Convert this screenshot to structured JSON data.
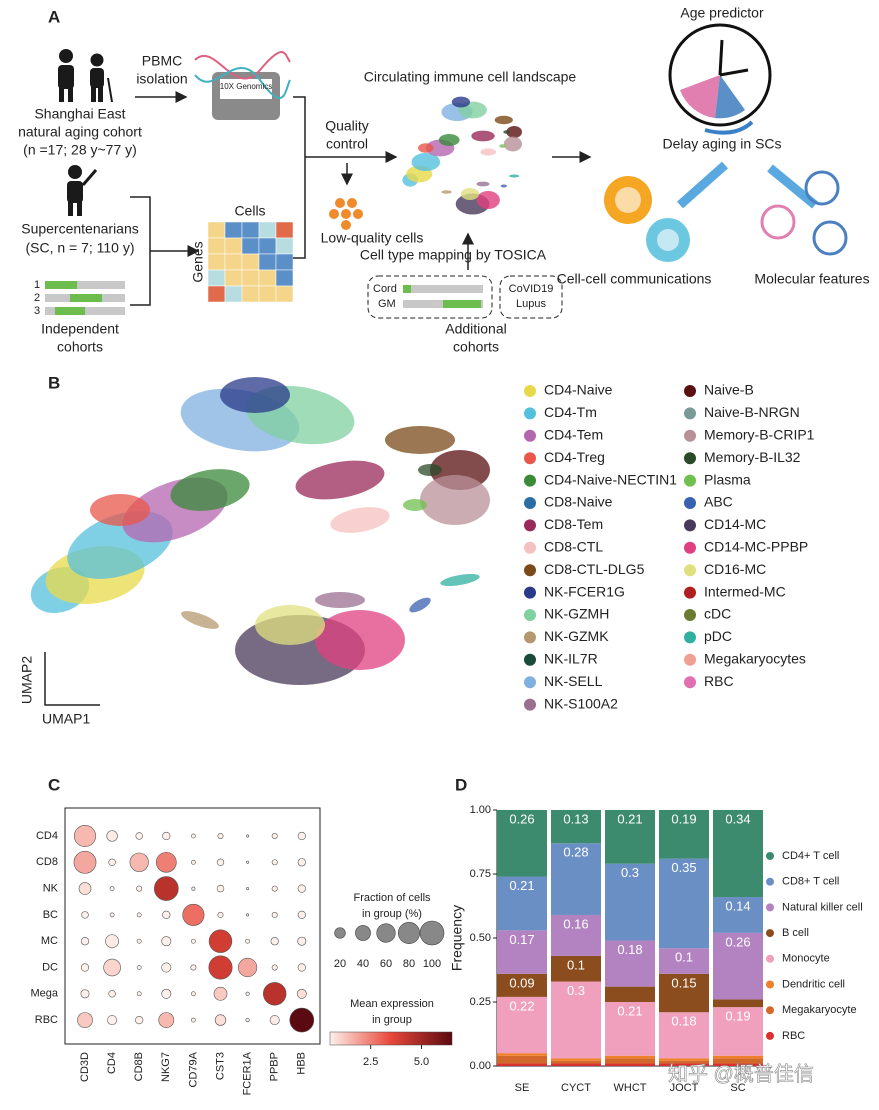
{
  "panel_a": {
    "label": "A",
    "isolation": [
      "PBMC",
      "isolation"
    ],
    "cohort": [
      "Shanghai East",
      "natural aging cohort",
      "(n =17; 28 y~77 y)"
    ],
    "kit": "10X Genomics",
    "sc": [
      "Supercentenarians",
      "(SC, n = 7; 110 y)"
    ],
    "cohort_numbers": [
      "1",
      "2",
      "3"
    ],
    "independent": [
      "Independent",
      "cohorts"
    ],
    "cells": "Cells",
    "genes": "Genes",
    "qc": [
      "Quality",
      "control"
    ],
    "low_quality": "Low-quality cells",
    "landscape": "Circulating immune cell landscape",
    "mapping": "Cell type mapping by TOSICA",
    "references": [
      "Cord",
      "GM"
    ],
    "diseases": [
      "CoVID19",
      "Lupus"
    ],
    "additional": [
      "Additional",
      "cohorts"
    ],
    "age": "Age predictor",
    "delay": "Delay aging in SCs",
    "ccc": "Cell-cell communications",
    "molecular": "Molecular features"
  },
  "panel_b": {
    "label": "B",
    "x_label": "UMAP1",
    "y_label": "UMAP2",
    "cell_types": [
      {
        "name": "CD4-Naive",
        "color": "#e8d94a"
      },
      {
        "name": "CD4-Tm",
        "color": "#55c0dc"
      },
      {
        "name": "CD4-Tem",
        "color": "#b565b0"
      },
      {
        "name": "CD4-Treg",
        "color": "#e8574a"
      },
      {
        "name": "CD4-Naive-NECTIN1",
        "color": "#3a8a3a"
      },
      {
        "name": "CD8-Naive",
        "color": "#2b6ea3"
      },
      {
        "name": "CD8-Tem",
        "color": "#9a2a5a"
      },
      {
        "name": "CD8-CTL",
        "color": "#f5c0c0"
      },
      {
        "name": "CD8-CTL-DLG5",
        "color": "#7a4a1a"
      },
      {
        "name": "NK-FCER1G",
        "color": "#2a3a8a"
      },
      {
        "name": "NK-GZMH",
        "color": "#80d0a0"
      },
      {
        "name": "NK-GZMK",
        "color": "#b59870"
      },
      {
        "name": "NK-IL7R",
        "color": "#1a4a3a"
      },
      {
        "name": "NK-SELL",
        "color": "#80b0e0"
      },
      {
        "name": "NK-S100A2",
        "color": "#9a7090"
      },
      {
        "name": "Naive-B",
        "color": "#5a1010"
      },
      {
        "name": "Naive-B-NRGN",
        "color": "#7a9a98"
      },
      {
        "name": "Memory-B-CRIP1",
        "color": "#b89098"
      },
      {
        "name": "Memory-B-IL32",
        "color": "#2a4a2a"
      },
      {
        "name": "Plasma",
        "color": "#70c050"
      },
      {
        "name": "ABC",
        "color": "#3a60b0"
      },
      {
        "name": "CD14-MC",
        "color": "#4a3a5a"
      },
      {
        "name": "CD14-MC-PPBP",
        "color": "#e04080"
      },
      {
        "name": "CD16-MC",
        "color": "#e0e080"
      },
      {
        "name": "Intermed-MC",
        "color": "#b02020"
      },
      {
        "name": "cDC",
        "color": "#6a7a30"
      },
      {
        "name": "pDC",
        "color": "#30b0a0"
      },
      {
        "name": "Megakaryocytes",
        "color": "#f0a090"
      },
      {
        "name": "RBC",
        "color": "#e070b0"
      }
    ]
  },
  "chart_data": [
    {
      "type": "dot",
      "panel_label": "C",
      "rows": [
        "CD4",
        "CD8",
        "NK",
        "BC",
        "MC",
        "DC",
        "Mega",
        "RBC"
      ],
      "columns": [
        "CD3D",
        "CD4",
        "CD8B",
        "NKG7",
        "CD79A",
        "CST3",
        "FCER1A",
        "PPBP",
        "HBB"
      ],
      "fraction": [
        [
          80,
          20,
          8,
          10,
          3,
          5,
          1,
          5,
          10
        ],
        [
          85,
          8,
          60,
          70,
          3,
          8,
          1,
          5,
          10
        ],
        [
          25,
          3,
          5,
          100,
          2,
          8,
          1,
          5,
          10
        ],
        [
          8,
          3,
          3,
          10,
          80,
          5,
          1,
          5,
          10
        ],
        [
          10,
          30,
          3,
          15,
          3,
          90,
          3,
          10,
          12
        ],
        [
          10,
          50,
          3,
          15,
          5,
          95,
          60,
          5,
          10
        ],
        [
          12,
          8,
          3,
          15,
          3,
          30,
          2,
          90,
          15
        ],
        [
          40,
          15,
          10,
          40,
          3,
          20,
          2,
          15,
          100
        ]
      ],
      "expression": [
        [
          1.5,
          0.6,
          0.2,
          0.4,
          0.1,
          0.2,
          0.1,
          0.3,
          0.5
        ],
        [
          1.8,
          0.2,
          1.5,
          2.5,
          0.1,
          0.3,
          0.1,
          0.3,
          0.5
        ],
        [
          0.8,
          0.1,
          0.2,
          4.5,
          0.1,
          0.3,
          0.1,
          0.3,
          0.5
        ],
        [
          0.2,
          0.1,
          0.1,
          0.4,
          2.8,
          0.3,
          0.1,
          0.3,
          0.5
        ],
        [
          0.3,
          0.6,
          0.1,
          0.5,
          0.1,
          4.0,
          0.2,
          0.5,
          0.5
        ],
        [
          0.3,
          1.0,
          0.1,
          0.5,
          0.2,
          4.0,
          1.8,
          0.2,
          0.5
        ],
        [
          0.4,
          0.2,
          0.1,
          0.5,
          0.1,
          1.2,
          0.1,
          4.5,
          0.8
        ],
        [
          1.2,
          0.5,
          0.5,
          1.5,
          0.1,
          0.8,
          0.1,
          0.6,
          6.5
        ]
      ],
      "size_legend": {
        "title": [
          "Fraction of cells",
          "in group (%)"
        ],
        "values": [
          20,
          40,
          60,
          80,
          100
        ]
      },
      "color_legend": {
        "title": [
          "Mean expression",
          "in group"
        ],
        "lim": [
          0.5,
          6.5
        ],
        "ticks": [
          2.5,
          {
            "value": 5,
            "label": "5.0"
          }
        ],
        "colors": [
          "#fdf0ea",
          "#e8473a",
          "#5a0a10"
        ]
      }
    },
    {
      "type": "bar",
      "stacked": true,
      "panel_label": "D",
      "y_label": "Frequency",
      "categories": [
        "SE",
        "CYCT",
        "WHCT",
        "JOCT",
        "SC"
      ],
      "ylim": [
        0,
        1
      ],
      "yticks": [
        {
          "value": 0,
          "label": "0.00"
        },
        {
          "value": 0.25,
          "label": "0.25"
        },
        {
          "value": 0.5,
          "label": "0.50"
        },
        {
          "value": 0.75,
          "label": "0.75"
        },
        {
          "value": 1,
          "label": "1.00"
        }
      ],
      "legend_position": "right",
      "series": [
        {
          "name": "CD4+ T cell",
          "color": "#3d8b6e",
          "values": [
            0.26,
            0.13,
            0.21,
            0.19,
            0.34
          ],
          "show_labels": true
        },
        {
          "name": "CD8+ T cell",
          "color": "#6a8fc4",
          "values": [
            0.21,
            0.28,
            0.3,
            0.35,
            0.14
          ],
          "show_labels": true
        },
        {
          "name": "Natural killer cell",
          "color": "#b283c0",
          "values": [
            0.17,
            0.16,
            0.18,
            0.1,
            0.26
          ],
          "show_labels": true
        },
        {
          "name": "B cell",
          "color": "#8b4d1e",
          "values": [
            0.09,
            0.1,
            0.06,
            0.15,
            0.03
          ],
          "value_labels": [
            "0.09",
            "0.1",
            null,
            "0.15",
            null
          ]
        },
        {
          "name": "Monocyte",
          "color": "#f0a0bc",
          "values": [
            0.22,
            0.3,
            0.21,
            0.18,
            0.19
          ],
          "show_labels": true
        },
        {
          "name": "Dendritic cell",
          "color": "#f07f2a",
          "values": [
            0.01,
            0.01,
            0.01,
            0.01,
            0.01
          ]
        },
        {
          "name": "Megakaryocyte",
          "color": "#d2692a",
          "values": [
            0.03,
            0.01,
            0.02,
            0.01,
            0.02
          ]
        },
        {
          "name": "RBC",
          "color": "#d93030",
          "values": [
            0.01,
            0.01,
            0.01,
            0.01,
            0.01
          ]
        }
      ]
    }
  ],
  "watermark": "知乎 @概普佳信"
}
